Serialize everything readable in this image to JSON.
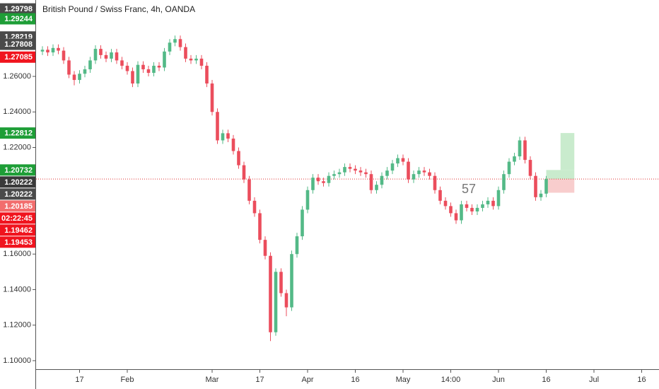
{
  "chart_data": {
    "type": "candlestick",
    "title": "British Pound / Swiss Franc, 4h, OANDA",
    "annotation": "57",
    "categories": [
      null,
      null,
      null,
      null,
      null,
      null,
      null,
      "17",
      null,
      null,
      null,
      null,
      null,
      null,
      null,
      null,
      "Feb",
      null,
      null,
      null,
      null,
      null,
      null,
      null,
      null,
      null,
      null,
      null,
      null,
      null,
      null,
      null,
      "Mar",
      null,
      null,
      null,
      null,
      null,
      null,
      null,
      null,
      "17",
      null,
      null,
      null,
      null,
      null,
      null,
      null,
      null,
      "Apr",
      null,
      null,
      null,
      null,
      null,
      null,
      null,
      null,
      "16",
      null,
      null,
      null,
      null,
      null,
      null,
      null,
      null,
      "May",
      null,
      null,
      null,
      null,
      null,
      null,
      null,
      null,
      "14:00",
      null,
      null,
      null,
      null,
      null,
      null,
      null,
      null,
      "Jun",
      null,
      null,
      null,
      null,
      null,
      null,
      null,
      null,
      "16",
      null,
      null,
      null,
      null,
      null,
      null,
      null,
      null,
      "Jul",
      null,
      null,
      null,
      null,
      null,
      null,
      null,
      null,
      "16"
    ],
    "open": [
      1.274,
      1.275,
      1.2735,
      1.276,
      1.2745,
      1.269,
      1.261,
      1.258,
      1.2615,
      1.264,
      1.269,
      1.2755,
      1.272,
      1.27,
      1.2735,
      1.269,
      1.266,
      1.263,
      1.256,
      1.2665,
      1.264,
      1.262,
      1.266,
      1.265,
      1.274,
      1.279,
      1.281,
      1.2765,
      1.27,
      1.269,
      1.27,
      1.266,
      1.256,
      1.24,
      1.224,
      1.228,
      1.225,
      1.218,
      1.21,
      1.202,
      1.19,
      1.183,
      1.168,
      1.159,
      1.116,
      1.15,
      1.138,
      1.13,
      1.16,
      1.17,
      1.185,
      1.196,
      1.203,
      1.201,
      1.2,
      1.204,
      1.205,
      1.206,
      1.209,
      1.208,
      1.207,
      1.206,
      1.205,
      1.196,
      1.199,
      1.204,
      1.207,
      1.211,
      1.214,
      1.212,
      1.202,
      1.205,
      1.207,
      1.206,
      1.204,
      1.196,
      1.19,
      1.187,
      1.183,
      1.179,
      1.188,
      1.186,
      1.184,
      1.186,
      1.188,
      1.19,
      1.187,
      1.196,
      1.205,
      1.212,
      1.215,
      1.224,
      1.213,
      1.204,
      1.192,
      1.194,
      null,
      null,
      null,
      null,
      null,
      null,
      null,
      null,
      null,
      null,
      null,
      null,
      null,
      null,
      null,
      null,
      null,
      null
    ],
    "high": [
      1.277,
      1.277,
      1.278,
      1.278,
      1.2765,
      1.271,
      1.263,
      1.2635,
      1.266,
      1.271,
      1.2775,
      1.2775,
      1.274,
      1.2755,
      1.2755,
      1.271,
      1.268,
      1.265,
      1.2685,
      1.2685,
      1.266,
      1.268,
      1.268,
      1.276,
      1.281,
      1.283,
      1.283,
      1.2785,
      1.272,
      1.272,
      1.272,
      1.268,
      1.258,
      1.242,
      1.23,
      1.23,
      1.227,
      1.22,
      1.212,
      1.204,
      1.192,
      1.185,
      1.17,
      1.161,
      1.152,
      1.152,
      1.14,
      1.162,
      1.172,
      1.187,
      1.198,
      1.205,
      1.205,
      1.203,
      1.206,
      1.207,
      1.208,
      1.211,
      1.211,
      1.21,
      1.209,
      1.208,
      1.207,
      1.201,
      1.206,
      1.209,
      1.213,
      1.216,
      1.216,
      1.214,
      1.207,
      1.209,
      1.209,
      1.208,
      1.206,
      1.198,
      1.192,
      1.189,
      1.185,
      1.19,
      1.19,
      1.188,
      1.188,
      1.19,
      1.192,
      1.192,
      1.198,
      1.207,
      1.214,
      1.217,
      1.226,
      1.226,
      1.215,
      1.206,
      1.196,
      1.204,
      null,
      null,
      null,
      null,
      null,
      null,
      null,
      null,
      null,
      null,
      null,
      null,
      null,
      null,
      null,
      null,
      null,
      null
    ],
    "low": [
      1.272,
      1.2715,
      1.2715,
      1.2725,
      1.267,
      1.259,
      1.255,
      1.256,
      1.2595,
      1.262,
      1.267,
      1.27,
      1.268,
      1.268,
      1.267,
      1.264,
      1.261,
      1.254,
      1.254,
      1.262,
      1.26,
      1.26,
      1.263,
      1.263,
      1.272,
      1.277,
      1.2745,
      1.268,
      1.267,
      1.267,
      1.264,
      1.254,
      1.238,
      1.222,
      1.222,
      1.223,
      1.216,
      1.208,
      1.2,
      1.188,
      1.181,
      1.166,
      1.157,
      1.111,
      1.114,
      1.136,
      1.125,
      1.128,
      1.158,
      1.168,
      1.183,
      1.194,
      1.199,
      1.198,
      1.198,
      1.202,
      1.203,
      1.204,
      1.206,
      1.205,
      1.204,
      1.203,
      1.194,
      1.194,
      1.197,
      1.202,
      1.205,
      1.209,
      1.21,
      1.2,
      1.2,
      1.203,
      1.204,
      1.202,
      1.194,
      1.188,
      1.185,
      1.181,
      1.177,
      1.177,
      1.184,
      1.182,
      1.182,
      1.184,
      1.186,
      1.185,
      1.185,
      1.194,
      1.203,
      1.21,
      1.213,
      1.211,
      1.202,
      1.19,
      1.19,
      1.192,
      null,
      null,
      null,
      null,
      null,
      null,
      null,
      null,
      null,
      null,
      null,
      null,
      null,
      null,
      null,
      null,
      null,
      null
    ],
    "close": [
      1.275,
      1.2735,
      1.276,
      1.2745,
      1.269,
      1.261,
      1.258,
      1.2615,
      1.264,
      1.269,
      1.2755,
      1.272,
      1.27,
      1.2735,
      1.269,
      1.266,
      1.263,
      1.256,
      1.2665,
      1.264,
      1.262,
      1.266,
      1.265,
      1.274,
      1.279,
      1.281,
      1.2765,
      1.27,
      1.269,
      1.27,
      1.266,
      1.256,
      1.24,
      1.224,
      1.228,
      1.225,
      1.218,
      1.21,
      1.202,
      1.19,
      1.183,
      1.168,
      1.159,
      1.116,
      1.15,
      1.138,
      1.13,
      1.16,
      1.17,
      1.185,
      1.196,
      1.203,
      1.201,
      1.2,
      1.204,
      1.205,
      1.206,
      1.209,
      1.208,
      1.207,
      1.206,
      1.205,
      1.196,
      1.199,
      1.204,
      1.207,
      1.211,
      1.214,
      1.212,
      1.202,
      1.205,
      1.207,
      1.206,
      1.204,
      1.196,
      1.19,
      1.187,
      1.183,
      1.179,
      1.188,
      1.186,
      1.184,
      1.186,
      1.188,
      1.19,
      1.187,
      1.196,
      1.205,
      1.212,
      1.215,
      1.224,
      1.213,
      1.204,
      1.192,
      1.194,
      1.20222,
      null,
      null,
      null,
      null,
      null,
      null,
      null,
      null,
      null,
      null,
      null,
      null,
      null,
      null,
      null,
      null,
      null,
      null
    ],
    "up_color": "#53b987",
    "down_color": "#eb4d5c",
    "ylim": [
      1.0952,
      1.303
    ],
    "yticks": [
      {
        "value": 1.26,
        "label": "1.26000"
      },
      {
        "value": 1.24,
        "label": "1.24000"
      },
      {
        "value": 1.22,
        "label": "1.22000"
      },
      {
        "value": 1.16,
        "label": "1.16000"
      },
      {
        "value": 1.14,
        "label": "1.14000"
      },
      {
        "value": 1.12,
        "label": "1.12000"
      },
      {
        "value": 1.1,
        "label": "1.10000"
      }
    ],
    "grid": false,
    "price_labels": [
      {
        "value": 1.29798,
        "label": "1.29798",
        "color": "#4a4a4a"
      },
      {
        "value": 1.29244,
        "label": "1.29244",
        "color": "#1e9e37"
      },
      {
        "value": 1.28219,
        "label": "1.28219",
        "color": "#4a4a4a"
      },
      {
        "value": 1.27808,
        "label": "1.27808",
        "color": "#4a4a4a"
      },
      {
        "value": 1.27085,
        "label": "1.27085",
        "color": "#f0141e"
      },
      {
        "value": 1.22812,
        "label": "1.22812",
        "color": "#1e9e37"
      },
      {
        "value": 1.20732,
        "label": "1.20732",
        "color": "#1e9e37"
      },
      {
        "value": 1.20222,
        "label": "1.20222",
        "color": "#3a3a3a"
      },
      {
        "value": 1.20222,
        "label": "1.20222",
        "color": "#4a4a4a"
      },
      {
        "value": 1.20185,
        "label": "1.20185",
        "color": "#f26d6d"
      },
      {
        "label": "02:22:45",
        "color": "#f0141e"
      },
      {
        "value": 1.19462,
        "label": "1.19462",
        "color": "#f0141e"
      },
      {
        "value": 1.19453,
        "label": "1.19453",
        "color": "#f0141e"
      }
    ],
    "position": {
      "entry": 1.20222,
      "target": 1.22812,
      "partial": 1.20732,
      "stop": 1.19453,
      "profit_color": "#bfe8c4",
      "loss_color": "#f7c4c4"
    }
  }
}
